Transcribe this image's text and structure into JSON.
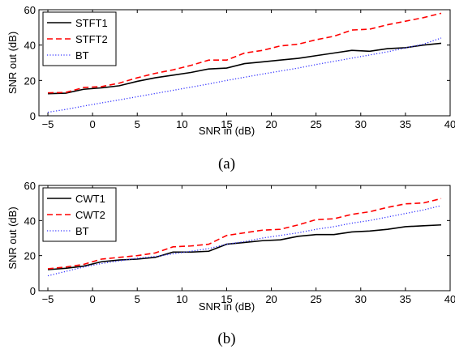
{
  "chart_data": [
    {
      "type": "line",
      "caption": "(a)",
      "xlabel": "SNR in (dB)",
      "ylabel": "SNR out (dB)",
      "xlim": [
        -6,
        40
      ],
      "ylim": [
        0,
        60
      ],
      "xticks": [
        -5,
        0,
        5,
        10,
        15,
        20,
        25,
        30,
        35,
        40
      ],
      "yticks": [
        0,
        20,
        40,
        60
      ],
      "grid": false,
      "legend_position": "top-left",
      "x": [
        -5,
        -3,
        -1,
        1,
        3,
        5,
        7,
        9,
        11,
        13,
        15,
        17,
        19,
        21,
        23,
        25,
        27,
        29,
        31,
        33,
        35,
        37,
        39
      ],
      "series": [
        {
          "name": "STFT1",
          "color": "#000000",
          "style": "solid",
          "values": [
            12.5,
            12.8,
            15.0,
            15.8,
            17.0,
            19.5,
            21.5,
            23.0,
            24.5,
            26.5,
            27.0,
            29.5,
            30.5,
            31.5,
            32.5,
            34.0,
            35.5,
            37.0,
            36.5,
            38.0,
            38.5,
            40.0,
            41.0
          ]
        },
        {
          "name": "STFT2",
          "color": "#ff0000",
          "style": "dashed",
          "values": [
            13.0,
            13.2,
            16.0,
            16.5,
            18.5,
            21.5,
            24.0,
            26.0,
            28.5,
            31.5,
            31.5,
            35.5,
            37.0,
            39.5,
            40.5,
            43.0,
            45.0,
            48.5,
            49.0,
            51.5,
            53.5,
            55.5,
            58.0
          ]
        },
        {
          "name": "BT",
          "color": "#3333ff",
          "style": "dotted",
          "values": [
            2.0,
            3.6,
            5.5,
            7.3,
            9.0,
            10.8,
            12.6,
            14.4,
            16.2,
            18.0,
            20.0,
            21.8,
            23.6,
            25.3,
            27.0,
            29.0,
            30.8,
            32.6,
            34.4,
            36.2,
            38.4,
            40.5,
            44.0
          ]
        }
      ]
    },
    {
      "type": "line",
      "caption": "(b)",
      "xlabel": "SNR in (dB)",
      "ylabel": "SNR out (dB)",
      "xlim": [
        -6,
        40
      ],
      "ylim": [
        0,
        60
      ],
      "xticks": [
        -5,
        0,
        5,
        10,
        15,
        20,
        25,
        30,
        35,
        40
      ],
      "yticks": [
        0,
        20,
        40,
        60
      ],
      "grid": false,
      "legend_position": "top-left",
      "x": [
        -5,
        -3,
        -1,
        1,
        3,
        5,
        7,
        9,
        11,
        13,
        15,
        17,
        19,
        21,
        23,
        25,
        27,
        29,
        31,
        33,
        35,
        37,
        39
      ],
      "series": [
        {
          "name": "CWT1",
          "color": "#000000",
          "style": "solid",
          "values": [
            12.0,
            12.8,
            14.0,
            16.5,
            17.5,
            18.0,
            19.0,
            22.0,
            22.0,
            22.5,
            26.5,
            27.5,
            28.5,
            29.0,
            31.0,
            32.0,
            32.0,
            33.5,
            34.0,
            35.0,
            36.5,
            37.0,
            37.5
          ]
        },
        {
          "name": "CWT2",
          "color": "#ff0000",
          "style": "dashed",
          "values": [
            12.5,
            13.5,
            15.0,
            18.0,
            19.0,
            20.0,
            21.5,
            25.0,
            25.5,
            26.5,
            31.5,
            33.0,
            34.5,
            35.0,
            37.5,
            40.5,
            41.0,
            43.5,
            45.0,
            47.5,
            49.5,
            50.0,
            52.5
          ]
        },
        {
          "name": "BT",
          "color": "#3333ff",
          "style": "dotted",
          "values": [
            8.5,
            11.0,
            13.5,
            15.5,
            17.0,
            18.5,
            19.5,
            21.0,
            22.5,
            24.0,
            26.5,
            28.0,
            30.0,
            31.5,
            33.0,
            35.0,
            36.5,
            38.5,
            40.0,
            42.0,
            44.0,
            46.0,
            48.5
          ]
        }
      ]
    }
  ]
}
